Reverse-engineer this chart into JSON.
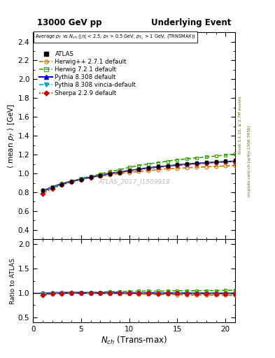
{
  "title_left": "13000 GeV pp",
  "title_right": "Underlying Event",
  "plot_label": "Average p_{T} vs N_{ch} (|#eta| < 2.5, p_{T} > 0.5 GeV, p_{T1} > 1 GeV, (TRNSMAX))",
  "xlabel": "N_{ch} (Trans-max)",
  "ylabel": "\\u27e8 mean p_{T} \\u27e9 [GeV]",
  "ylabel_ratio": "Ratio to ATLAS",
  "watermark": "ATLAS_2017_I1509919",
  "rivet_label": "Rivet 3.1.10, ≥ 2.7M events",
  "mcplots_label": "mcplots.cern.ch [arXiv:1306.3436]",
  "ylim_main": [
    0.3,
    2.5
  ],
  "ylim_ratio": [
    0.4,
    2.1
  ],
  "yticks_main": [
    0.4,
    0.6,
    0.8,
    1.0,
    1.2,
    1.4,
    1.6,
    1.8,
    2.0,
    2.2,
    2.4
  ],
  "yticks_ratio": [
    0.5,
    1.0,
    1.5,
    2.0
  ],
  "xlim": [
    0,
    21
  ],
  "xticks": [
    0,
    5,
    10,
    15,
    20
  ],
  "nch": [
    1,
    2,
    3,
    4,
    5,
    6,
    7,
    8,
    9,
    10,
    11,
    12,
    13,
    14,
    15,
    16,
    17,
    18,
    19,
    20,
    21
  ],
  "atlas_y": [
    0.825,
    0.855,
    0.885,
    0.91,
    0.935,
    0.96,
    0.975,
    0.995,
    1.01,
    1.03,
    1.045,
    1.06,
    1.075,
    1.085,
    1.095,
    1.105,
    1.115,
    1.12,
    1.13,
    1.135,
    1.14
  ],
  "atlas_yerr": [
    0.02,
    0.015,
    0.012,
    0.01,
    0.009,
    0.008,
    0.008,
    0.007,
    0.007,
    0.007,
    0.007,
    0.007,
    0.007,
    0.007,
    0.008,
    0.008,
    0.009,
    0.009,
    0.01,
    0.01,
    0.012
  ],
  "herwig271_y": [
    0.82,
    0.86,
    0.895,
    0.92,
    0.94,
    0.955,
    0.97,
    0.985,
    1.0,
    1.01,
    1.02,
    1.03,
    1.04,
    1.05,
    1.055,
    1.06,
    1.065,
    1.07,
    1.075,
    1.08,
    1.085
  ],
  "herwig721_y": [
    0.805,
    0.845,
    0.885,
    0.915,
    0.945,
    0.97,
    0.995,
    1.02,
    1.04,
    1.065,
    1.085,
    1.1,
    1.115,
    1.13,
    1.145,
    1.155,
    1.165,
    1.175,
    1.185,
    1.195,
    1.205
  ],
  "pythia8308_y": [
    0.81,
    0.855,
    0.89,
    0.915,
    0.94,
    0.96,
    0.98,
    1.0,
    1.015,
    1.03,
    1.045,
    1.06,
    1.07,
    1.08,
    1.09,
    1.1,
    1.107,
    1.113,
    1.12,
    1.125,
    1.13
  ],
  "pythia8308v_y": [
    0.81,
    0.852,
    0.888,
    0.913,
    0.938,
    0.958,
    0.978,
    0.998,
    1.013,
    1.028,
    1.043,
    1.055,
    1.067,
    1.077,
    1.087,
    1.097,
    1.104,
    1.11,
    1.117,
    1.122,
    1.127
  ],
  "sherpa229_y": [
    0.785,
    0.84,
    0.878,
    0.91,
    0.937,
    0.958,
    0.978,
    0.998,
    1.013,
    1.028,
    1.042,
    1.055,
    1.066,
    1.077,
    1.087,
    1.096,
    1.103,
    1.11,
    1.117,
    1.123,
    1.128
  ],
  "color_atlas": "#000000",
  "color_herwig271": "#cc7700",
  "color_herwig721": "#33aa00",
  "color_pythia8308": "#0000cc",
  "color_pythia8308v": "#00aacc",
  "color_sherpa229": "#cc0000",
  "bg_color": "#ffffff",
  "legend_entries": [
    "ATLAS",
    "Herwig++ 2.7.1 default",
    "Herwig 7.2.1 default",
    "Pythia 8.308 default",
    "Pythia 8.308 vincia-default",
    "Sherpa 2.2.9 default"
  ]
}
